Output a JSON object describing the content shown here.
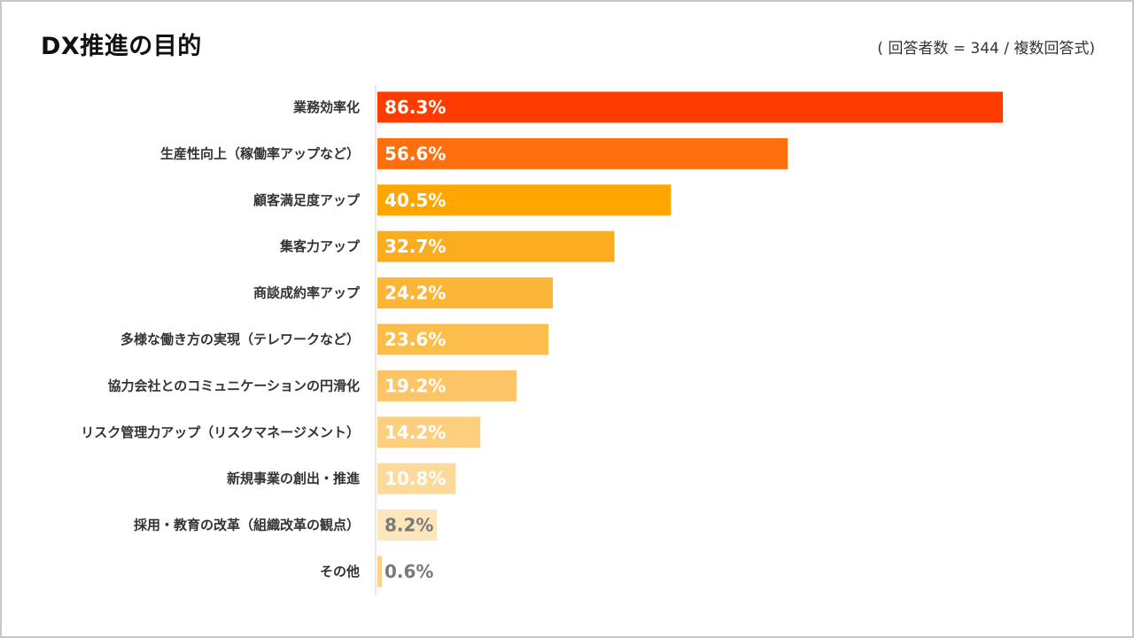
{
  "title": "DX推進の目的",
  "note": "( 回答者数 = 344 / 複数回答式)",
  "chart_data": {
    "type": "bar",
    "orientation": "horizontal",
    "unit": "%",
    "categories": [
      "業務効率化",
      "生産性向上（稼働率アップなど）",
      "顧客満足度アップ",
      "集客力アップ",
      "商談成約率アップ",
      "多様な働き方の実現（テレワークなど）",
      "協力会社とのコミュニケーションの円滑化",
      "リスク管理力アップ（リスクマネージメント）",
      "新規事業の創出・推進",
      "採用・教育の改革（組織改革の観点）",
      "その他"
    ],
    "values": [
      86.3,
      56.6,
      40.5,
      32.7,
      24.2,
      23.6,
      19.2,
      14.2,
      10.8,
      8.2,
      0.6
    ],
    "value_labels": [
      "86.3%",
      "56.6%",
      "40.5%",
      "32.7%",
      "24.2%",
      "23.6%",
      "19.2%",
      "14.2%",
      "10.8%",
      "8.2%",
      "0.6%"
    ],
    "colors": [
      "#ff3c00",
      "#ff6f0f",
      "#ffa600",
      "#fbac1f",
      "#fcb536",
      "#fcbd4a",
      "#fdc565",
      "#fdcf7e",
      "#fdda9a",
      "#fee6bc",
      "#fcd189"
    ],
    "label_colors": [
      "#ffffff",
      "#ffffff",
      "#ffffff",
      "#ffffff",
      "#ffffff",
      "#ffffff",
      "#ffffff",
      "#ffffff",
      "#ffffff",
      "#7a7a7a",
      "#7a7a7a"
    ],
    "xlim": [
      0,
      100
    ],
    "grid": false,
    "legend": "none"
  }
}
